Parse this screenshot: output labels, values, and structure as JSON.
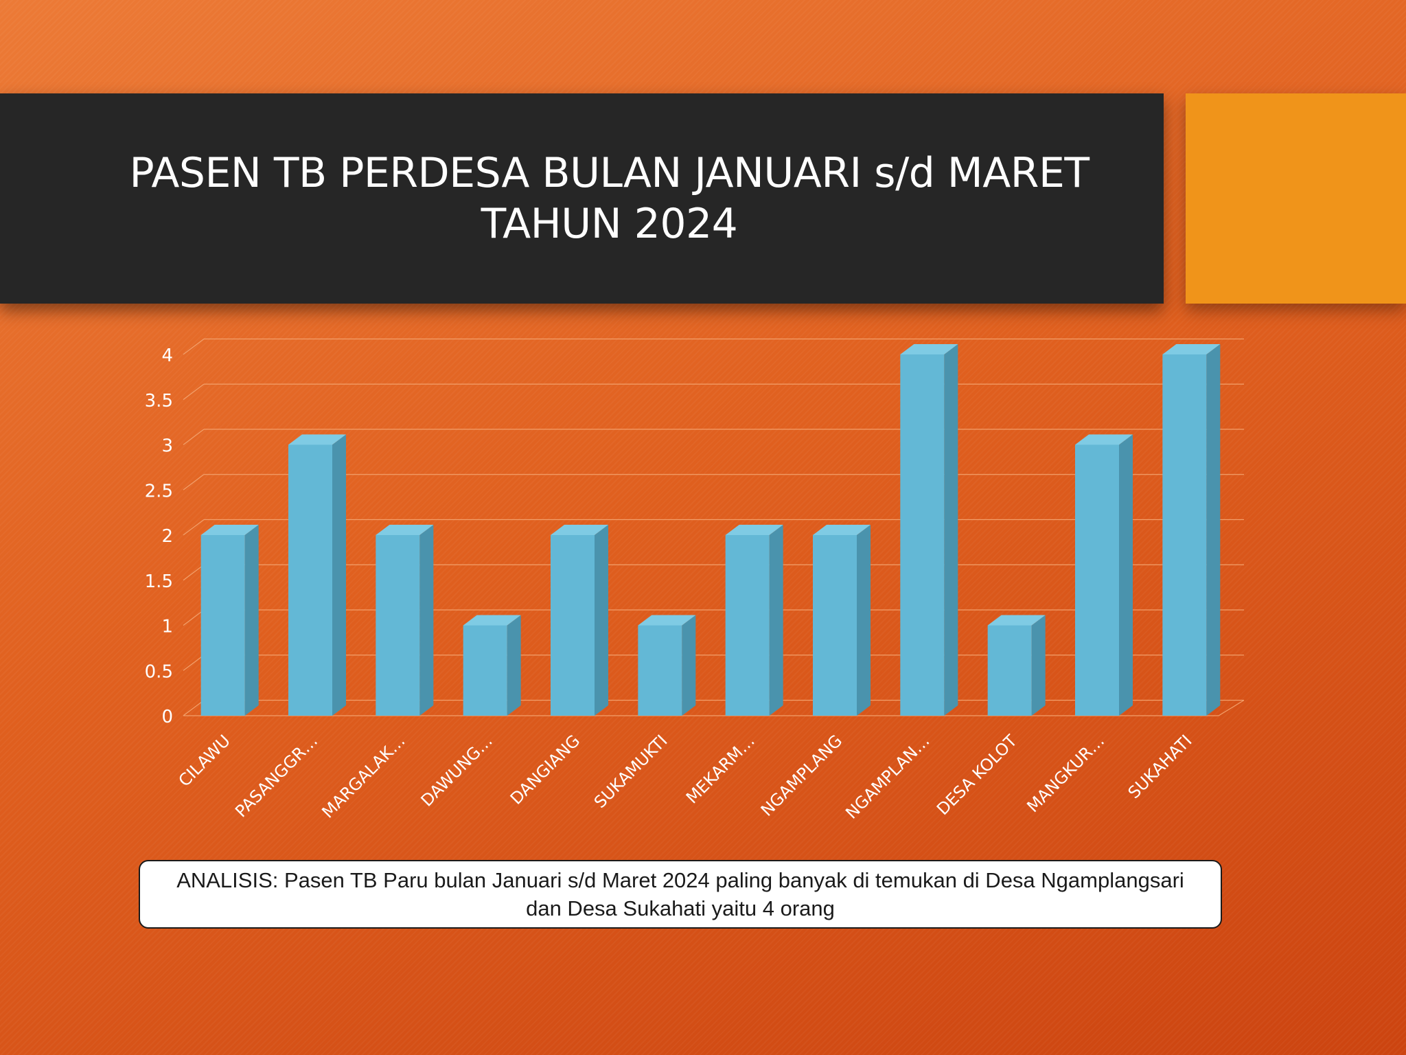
{
  "slide": {
    "title": "PASEN TB PERDESA BULAN JANUARI s/d MARET TAHUN 2024",
    "analysis": "ANALISIS: Pasen TB Paru  bulan Januari s/d Maret 2024 paling banyak di temukan di Desa Ngamplangsari  dan Desa Sukahati yaitu 4 orang"
  },
  "colors": {
    "bar_front": "#63b8d6",
    "bar_side": "#4a93ad",
    "bar_top": "#7fcbe4",
    "grid": "#f2a06b",
    "accent": "#f0941a"
  },
  "chart_data": {
    "type": "bar",
    "title": "",
    "xlabel": "",
    "ylabel": "",
    "categories": [
      "CILAWU",
      "PASANGGR…",
      "MARGALAK…",
      "DAWUNG…",
      "DANGIANG",
      "SUKAMUKTI",
      "MEKARM…",
      "NGAMPLANG",
      "NGAMPLAN…",
      "DESA KOLOT",
      "MANGKUR…",
      "SUKAHATI"
    ],
    "values": [
      2,
      3,
      2,
      1,
      2,
      1,
      2,
      2,
      4,
      1,
      3,
      4
    ],
    "ylim": [
      0,
      4
    ],
    "yticks": [
      "0",
      "0.5",
      "1",
      "1.5",
      "2",
      "2.5",
      "3",
      "3.5",
      "4"
    ],
    "grid": true,
    "legend": "none",
    "style": "3d-column"
  }
}
